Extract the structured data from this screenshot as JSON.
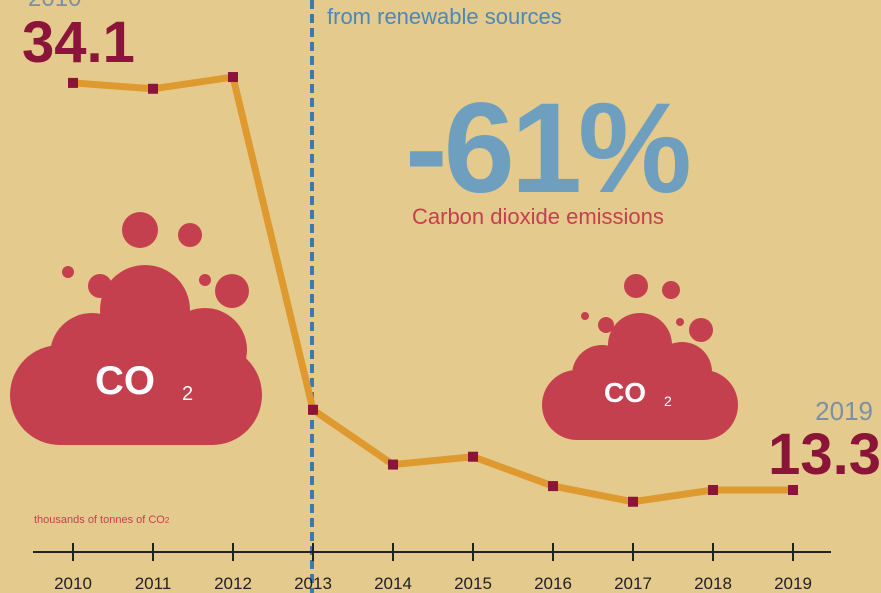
{
  "chart_data": {
    "type": "line",
    "annotations": {
      "source_note": "from renewable sources",
      "change": "-61%",
      "change_label": "Carbon dioxide emissions"
    },
    "cloud_label": {
      "text": "CO",
      "subscript": "2"
    },
    "unit_label": {
      "text": "thousands of tonnes of CO",
      "subscript": "2"
    },
    "categories": [
      "2010",
      "2011",
      "2012",
      "2013",
      "2014",
      "2015",
      "2016",
      "2017",
      "2018",
      "2019"
    ],
    "values": [
      34.1,
      33.8,
      34.4,
      17.4,
      14.6,
      15.0,
      13.5,
      12.7,
      13.3,
      13.3
    ],
    "color": "#de9a2e",
    "marker_color": "#8b1538",
    "ylim": [
      10,
      35
    ]
  }
}
